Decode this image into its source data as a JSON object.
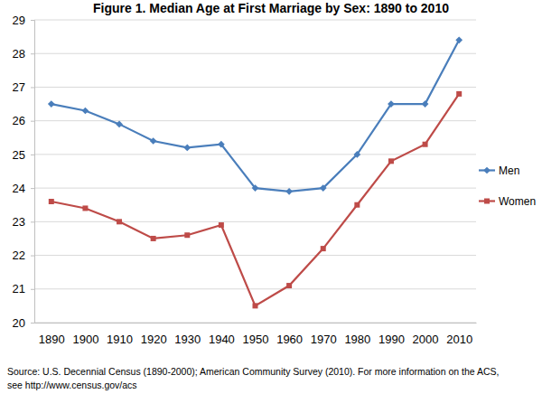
{
  "chart_data": {
    "type": "line",
    "title": "Figure 1.  Median Age at First Marriage by Sex:  1890 to 2010",
    "categories": [
      "1890",
      "1900",
      "1910",
      "1920",
      "1930",
      "1940",
      "1950",
      "1960",
      "1970",
      "1980",
      "1990",
      "2000",
      "2010"
    ],
    "series": [
      {
        "name": "Men",
        "color": "#4a7ebb",
        "marker": "diamond",
        "values": [
          26.5,
          26.3,
          25.9,
          25.4,
          25.2,
          25.3,
          24.0,
          23.9,
          24.0,
          25.0,
          26.5,
          26.5,
          28.4
        ]
      },
      {
        "name": "Women",
        "color": "#be4b48",
        "marker": "square",
        "values": [
          23.6,
          23.4,
          23.0,
          22.5,
          22.6,
          22.9,
          20.5,
          21.1,
          22.2,
          23.5,
          24.8,
          25.3,
          26.8
        ]
      }
    ],
    "ylim": [
      20,
      29
    ],
    "yticks": [
      20,
      21,
      22,
      23,
      24,
      25,
      26,
      27,
      28,
      29
    ],
    "grid": true,
    "legend": "right",
    "annotations": [
      "Source:  U.S. Decennial Census (1890-2000); American Community Survey (2010). For more information on the ACS,",
      "see http://www.census.gov/acs"
    ]
  }
}
